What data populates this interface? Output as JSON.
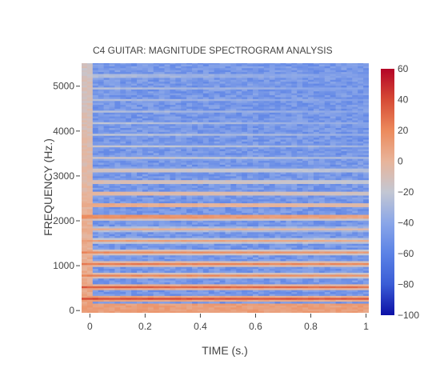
{
  "chart_data": {
    "type": "heatmap",
    "title": "C4 GUITAR: MAGNITUDE SPECTROGRAM ANALYSIS",
    "xlabel": "TIME (s.)",
    "ylabel": "FREQUENCY (Hz.)",
    "xlim": [
      -0.03,
      1.01
    ],
    "ylim": [
      -50,
      5512
    ],
    "x_ticks": [
      0,
      0.2,
      0.4,
      0.6,
      0.8,
      1
    ],
    "x_tick_labels": [
      "0",
      "0.2",
      "0.4",
      "0.6",
      "0.8",
      "1"
    ],
    "y_ticks": [
      0,
      1000,
      2000,
      3000,
      4000,
      5000
    ],
    "y_tick_labels": [
      "0",
      "1000",
      "2000",
      "3000",
      "4000",
      "5000"
    ],
    "colorbar": {
      "min": -100,
      "max": 60,
      "ticks": [
        60,
        40,
        20,
        0,
        -20,
        -40,
        -60,
        -80,
        -100
      ],
      "tick_labels": [
        "60",
        "40",
        "20",
        "0",
        "−20",
        "−40",
        "−60",
        "−80",
        "−100"
      ],
      "colorscale": [
        "#0c10a6",
        "#3a5cd6",
        "#5b82e6",
        "#8aa6e8",
        "#c3c7d3",
        "#e8b49a",
        "#ec8a5c",
        "#d64a35",
        "#b40426"
      ]
    },
    "harmonics_hz": [
      262,
      523,
      785,
      1046,
      1308,
      1570,
      1831,
      2093,
      2355,
      2616,
      2878,
      3139,
      3401,
      3663,
      3924,
      4186,
      4448,
      4709,
      4971,
      5233
    ],
    "harmonic_peak_db": [
      40,
      34,
      22,
      26,
      20,
      12,
      4,
      18,
      6,
      -2,
      -8,
      -12,
      -14,
      -18,
      -20,
      -22,
      -24,
      -26,
      -24,
      -26
    ],
    "time_frames_s": [
      -0.02,
      0.0,
      0.02,
      0.04,
      0.06,
      0.08,
      0.1,
      0.12,
      0.14,
      0.16,
      0.18,
      0.2,
      0.22,
      0.24,
      0.26,
      0.28,
      0.3,
      0.32,
      0.34,
      0.36,
      0.38,
      0.4,
      0.42,
      0.44,
      0.46,
      0.48,
      0.5,
      0.52,
      0.54,
      0.56,
      0.58,
      0.6,
      0.62,
      0.64,
      0.66,
      0.68,
      0.7,
      0.72,
      0.74,
      0.76,
      0.78,
      0.8,
      0.82,
      0.84,
      0.86,
      0.88,
      0.9,
      0.92,
      0.94,
      0.96,
      0.98,
      1.0
    ],
    "frequency_bin_hz": 43
  }
}
